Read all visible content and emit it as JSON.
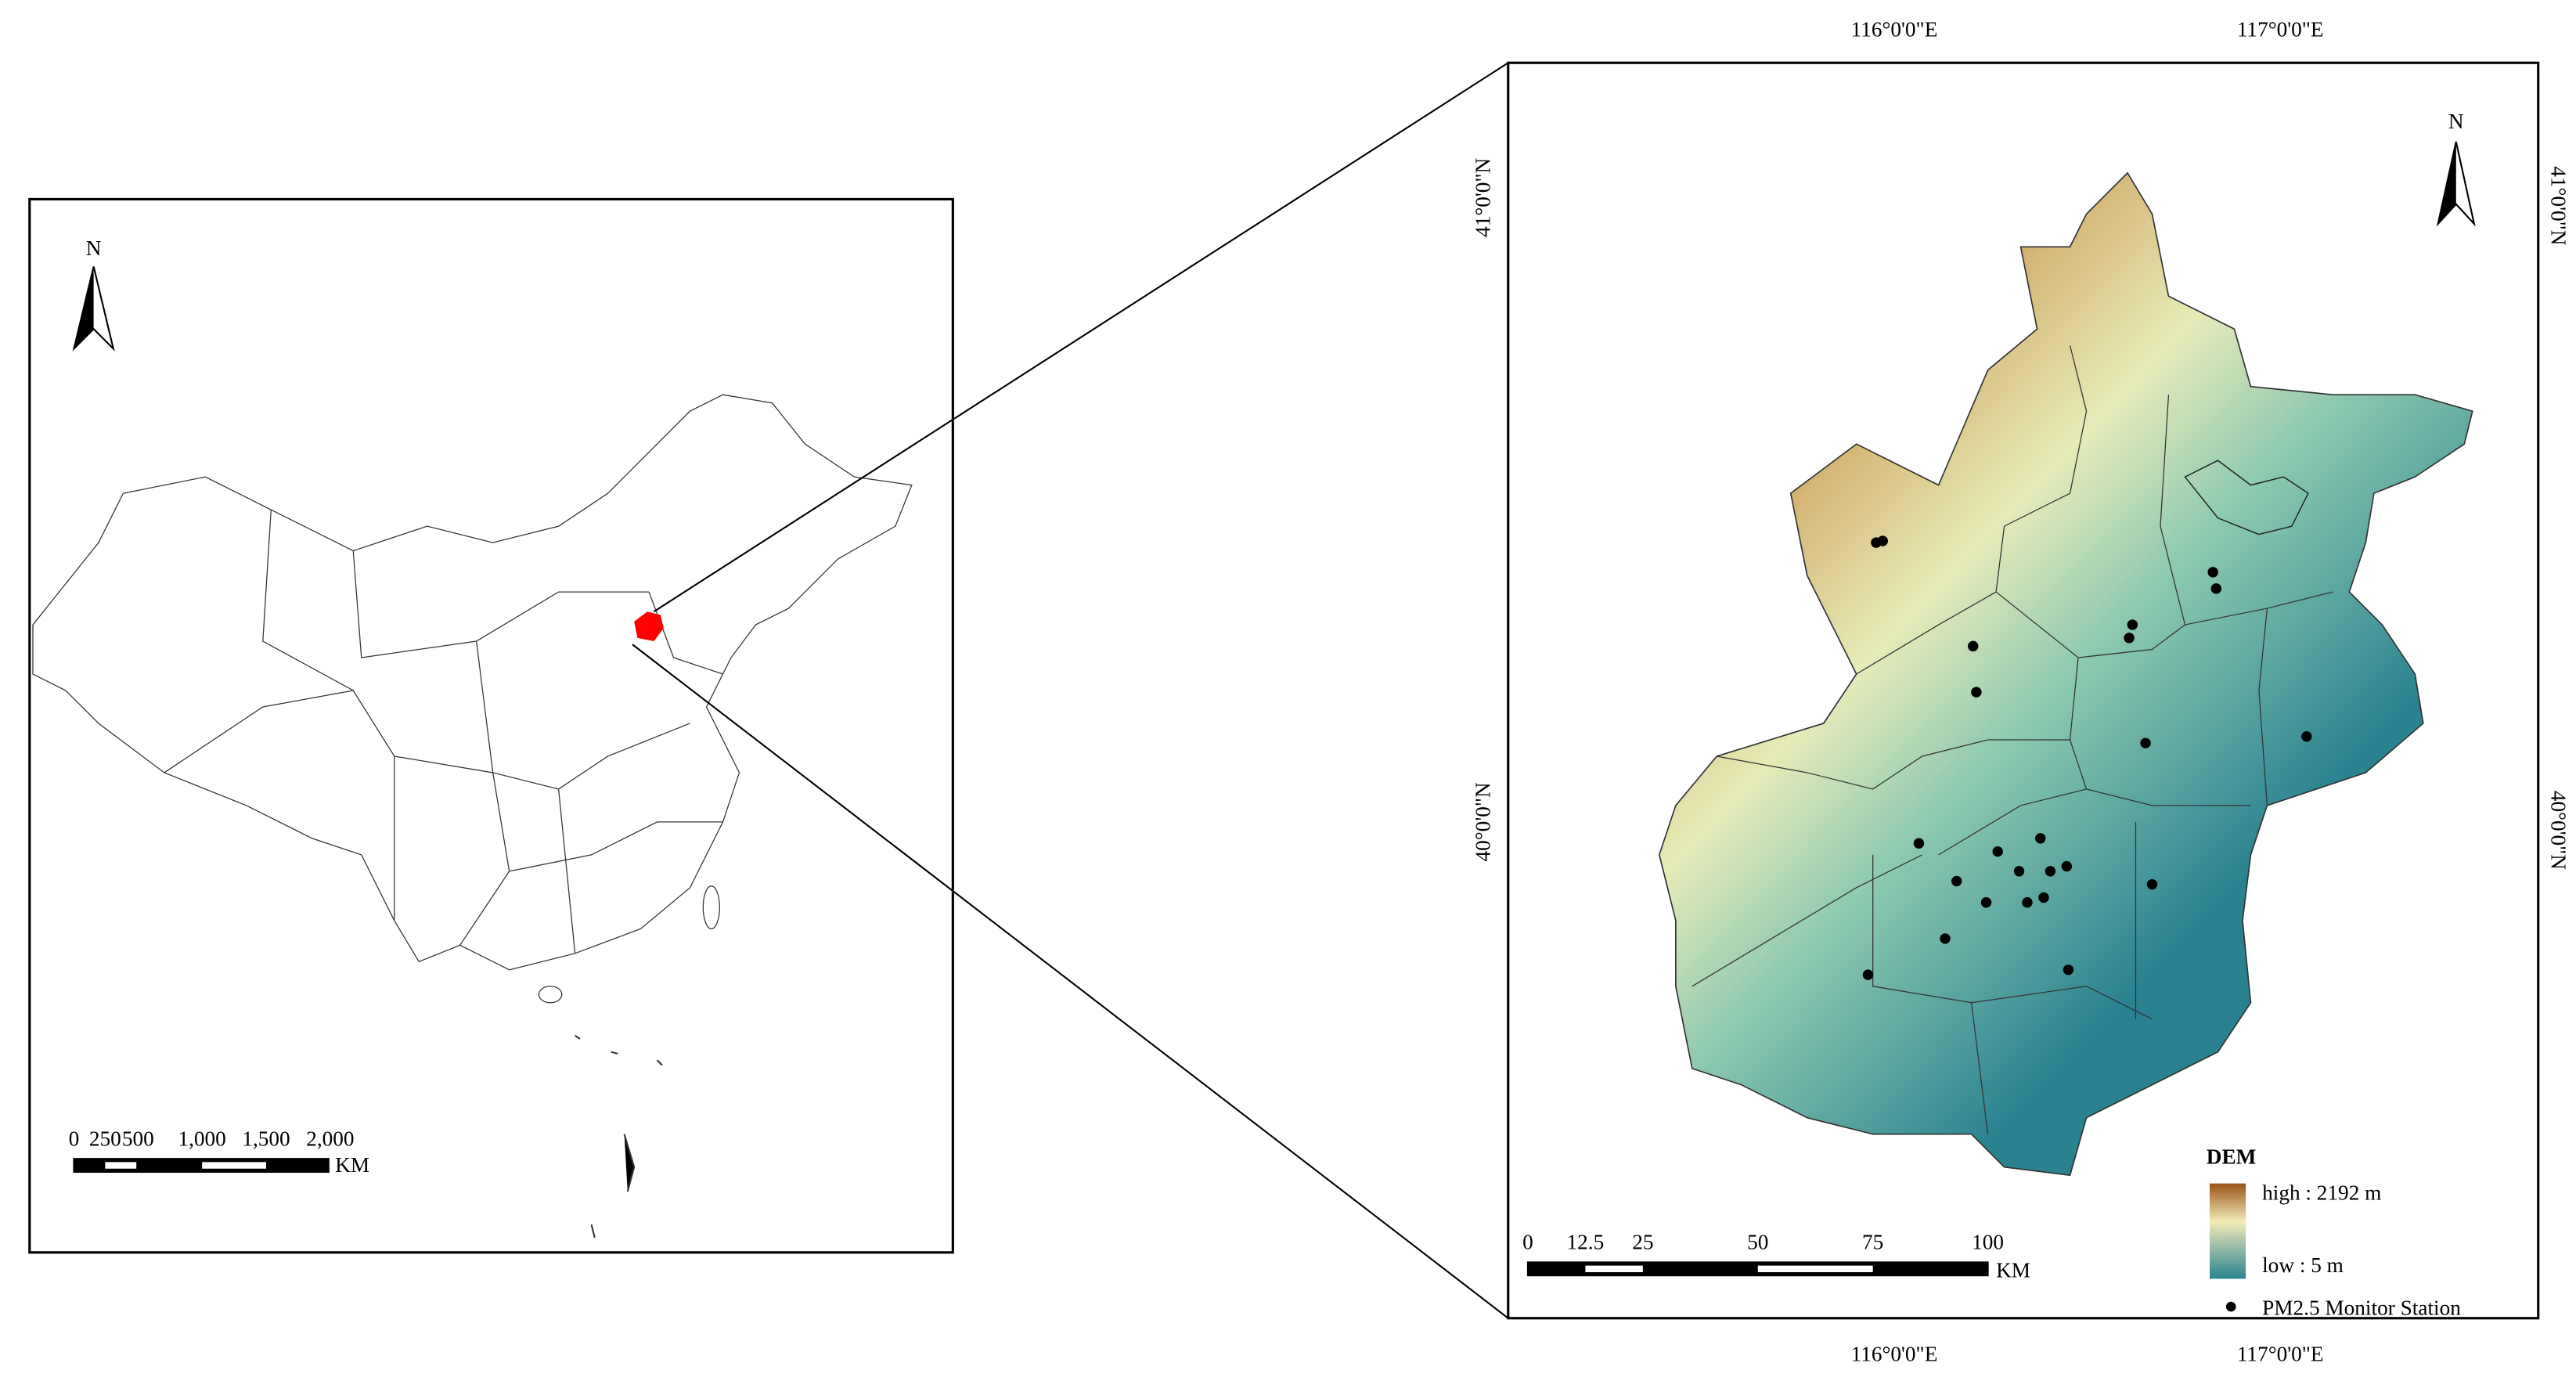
{
  "overview_map": {
    "north_label": "N",
    "scale_labels": [
      "0",
      "250",
      "500",
      "1,000",
      "1,500",
      "2,000"
    ],
    "scale_unit": "KM"
  },
  "detail_map": {
    "north_label": "N",
    "top_labels": [
      "116°0'0\"E",
      "117°0'0\"E"
    ],
    "bottom_labels": [
      "116°0'0\"E",
      "117°0'0\"E"
    ],
    "left_labels": [
      "41°0'0\"N",
      "40°0'0\"N"
    ],
    "right_labels": [
      "41°0'0\"N",
      "40°0'0\"N"
    ],
    "scale_labels": [
      "0",
      "12.5",
      "25",
      "50",
      "75",
      "100"
    ],
    "scale_unit": "KM",
    "legend": {
      "title": "DEM",
      "high": "high : 2192 m",
      "low": "low : 5 m",
      "station": "PM2.5 Monitor Station"
    }
  }
}
